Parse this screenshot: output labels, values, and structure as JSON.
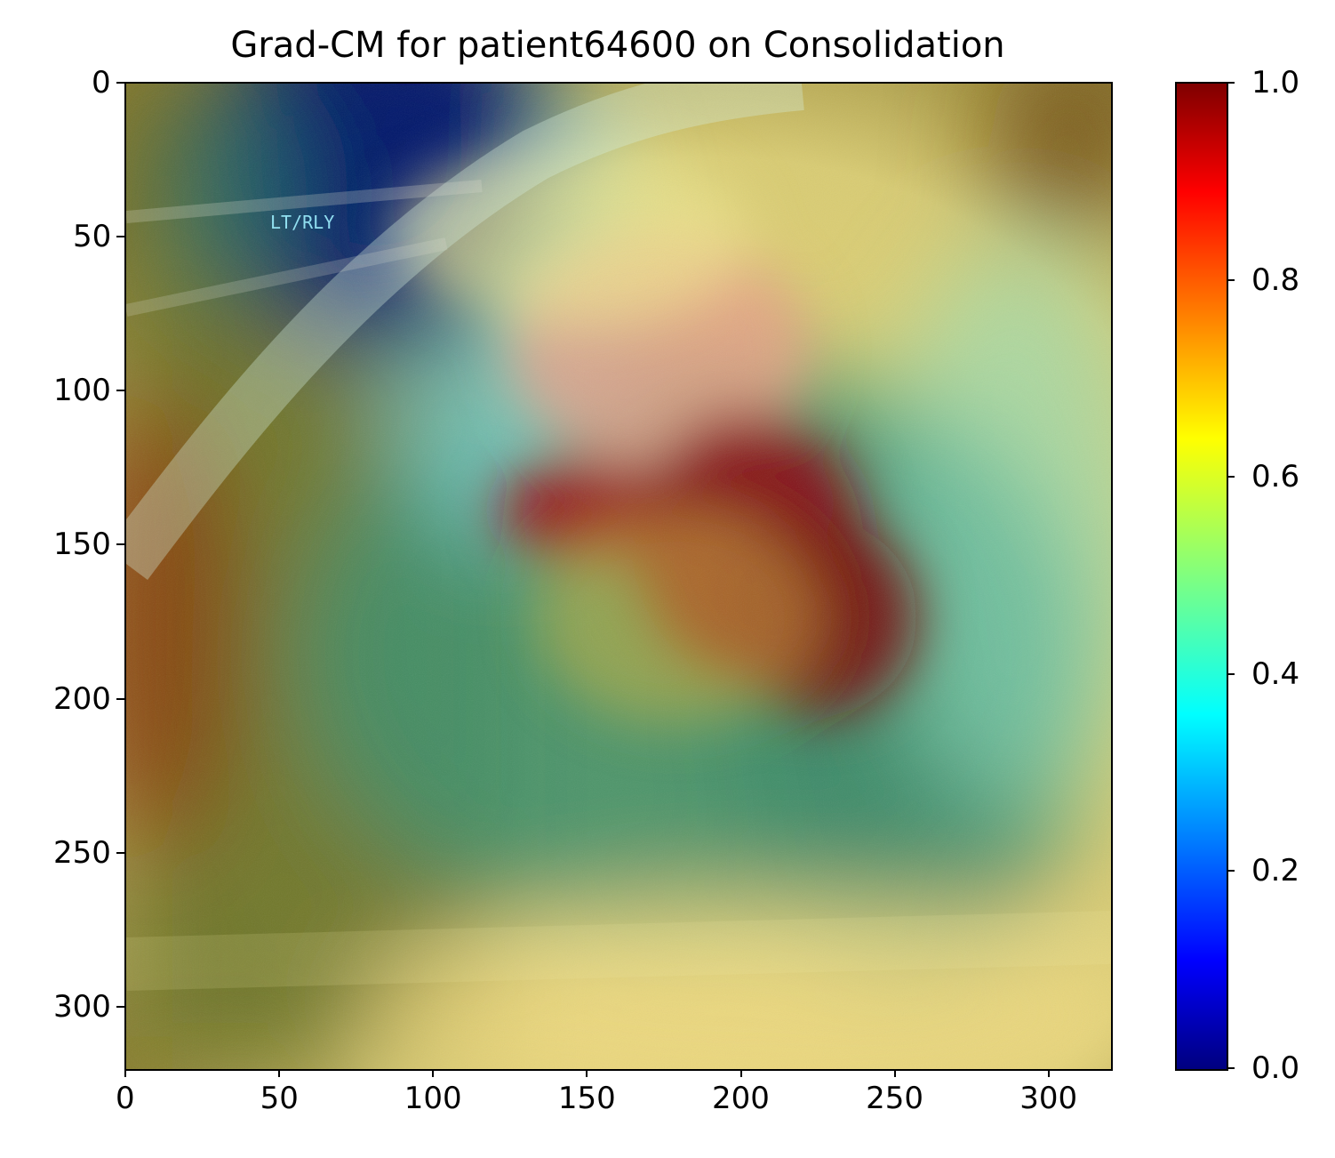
{
  "chart_data": {
    "type": "heatmap",
    "title": "Grad-CM for patient64600 on Consolidation",
    "xlabel": "",
    "ylabel": "",
    "xlim": [
      0,
      320
    ],
    "ylim": [
      320,
      0
    ],
    "x_ticks": [
      "0",
      "50",
      "100",
      "150",
      "200",
      "250",
      "300"
    ],
    "y_ticks": [
      "0",
      "50",
      "100",
      "150",
      "200",
      "250",
      "300"
    ],
    "colorbar": {
      "colormap": "jet",
      "range": [
        0.0,
        1.0
      ],
      "ticks": [
        "0.0",
        "0.2",
        "0.4",
        "0.6",
        "0.8",
        "1.0"
      ]
    },
    "overlay_text": "LT/RLY",
    "hotspots": [
      {
        "x": 205,
        "y": 155,
        "value": 1.0
      },
      {
        "x": 145,
        "y": 140,
        "value": 0.95
      },
      {
        "x": 215,
        "y": 185,
        "value": 0.9
      },
      {
        "x": 70,
        "y": 15,
        "value": 0.0
      },
      {
        "x": 10,
        "y": 190,
        "value": 0.85
      }
    ],
    "grid": false,
    "legend": "colorbar-right"
  },
  "colors": {
    "jet_dark_blue": "#00007f",
    "jet_blue": "#0000ff",
    "jet_cyan": "#00ffff",
    "jet_yellow": "#ffff00",
    "jet_red": "#ff0000",
    "jet_dark_red": "#7f0000"
  }
}
